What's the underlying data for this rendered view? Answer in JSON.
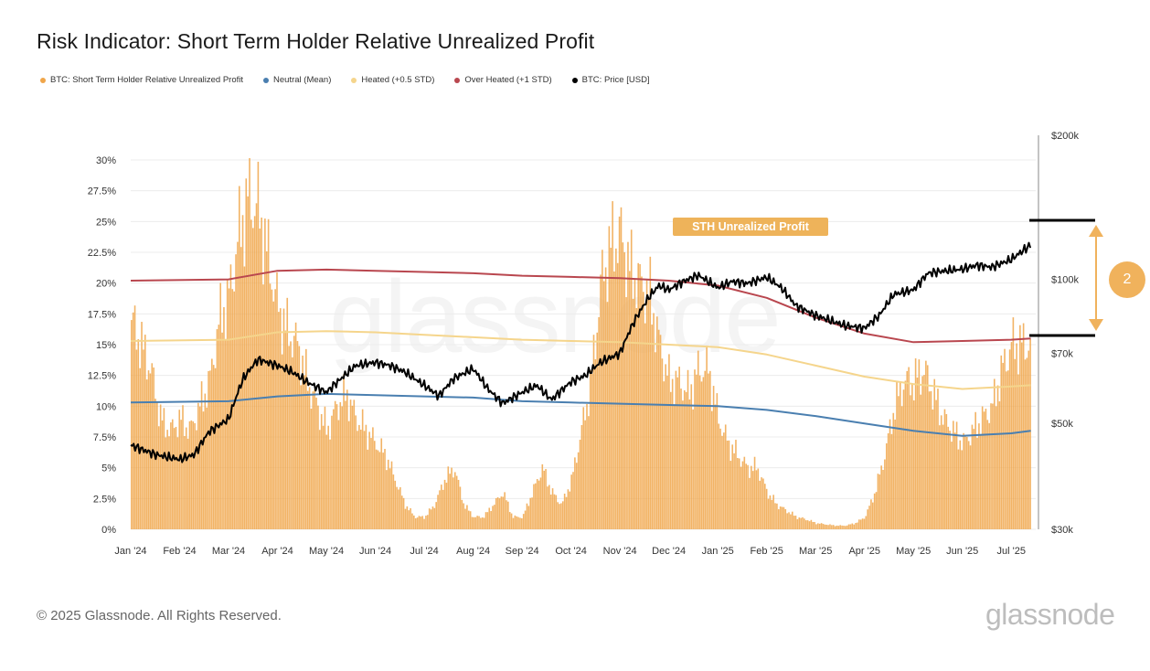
{
  "header": {
    "title": "Risk Indicator: Short Term Holder Relative Unrealized Profit"
  },
  "legend": [
    {
      "label": "BTC: Short Term Holder Relative Unrealized Profit",
      "color": "#f0a64a"
    },
    {
      "label": "Neutral (Mean)",
      "color": "#4a7fb0"
    },
    {
      "label": "Heated (+0.5 STD)",
      "color": "#f5d58c"
    },
    {
      "label": "Over Heated (+1 STD)",
      "color": "#b9474f"
    },
    {
      "label": "BTC: Price [USD]",
      "color": "#000000"
    }
  ],
  "annotation": {
    "label": "STH Unrealized Profit",
    "badge": "2"
  },
  "watermark": "glassnode",
  "footer": {
    "copyright": "© 2025 Glassnode. All Rights Reserved.",
    "brand": "glassnode"
  },
  "chart_data": {
    "type": "bar",
    "x_labels": [
      "Jan '24",
      "Feb '24",
      "Mar '24",
      "Apr '24",
      "May '24",
      "Jun '24",
      "Jul '24",
      "Aug '24",
      "Sep '24",
      "Oct '24",
      "Nov '24",
      "Dec '24",
      "Jan '25",
      "Feb '25",
      "Mar '25",
      "Apr '25",
      "May '25",
      "Jun '25",
      "Jul '25"
    ],
    "y_left": {
      "ticks": [
        "0%",
        "2.5%",
        "5%",
        "7.5%",
        "10%",
        "12.5%",
        "15%",
        "17.5%",
        "20%",
        "22.5%",
        "25%",
        "27.5%",
        "30%"
      ],
      "min": 0,
      "max": 30
    },
    "y_right": {
      "ticks": [
        "$30k",
        "$50k",
        "$70k",
        "$100k",
        "$200k"
      ],
      "values": [
        30000,
        50000,
        70000,
        100000,
        200000
      ],
      "scale": "log"
    },
    "grid": true,
    "legend_position": "top-left",
    "series": [
      {
        "name": "BTC: Short Term Holder Relative Unrealized Profit",
        "type": "bar",
        "color": "#f0a64a",
        "x": [
          0,
          0.2,
          0.4,
          0.6,
          0.8,
          1,
          1.2,
          1.4,
          1.6,
          1.8,
          2,
          2.2,
          2.4,
          2.6,
          2.8,
          3,
          3.2,
          3.4,
          3.6,
          3.8,
          4,
          4.2,
          4.4,
          4.6,
          4.8,
          5,
          5.2,
          5.4,
          5.6,
          5.8,
          6,
          6.2,
          6.4,
          6.6,
          6.8,
          7,
          7.2,
          7.4,
          7.6,
          7.8,
          8,
          8.2,
          8.4,
          8.6,
          8.8,
          9,
          9.2,
          9.4,
          9.6,
          9.8,
          10,
          10.2,
          10.4,
          10.6,
          10.8,
          11,
          11.2,
          11.4,
          11.6,
          11.8,
          12,
          12.2,
          12.4,
          12.6,
          12.8,
          13,
          13.2,
          13.4,
          13.6,
          13.8,
          14,
          14.2,
          14.4,
          14.6,
          14.8,
          15,
          15.2,
          15.4,
          15.6,
          15.8,
          16,
          16.2,
          16.4,
          16.6,
          16.8,
          17,
          17.2,
          17.4,
          17.6,
          17.8,
          18,
          18.2,
          18.4
        ],
        "values": [
          17,
          15,
          13,
          9,
          8,
          9,
          8,
          10,
          12,
          17,
          19,
          24,
          27,
          26,
          22,
          18,
          16,
          15,
          12,
          10,
          8,
          10,
          11,
          9,
          8,
          7,
          6,
          4,
          2,
          1,
          1,
          2,
          4,
          5,
          2,
          1,
          1,
          2,
          3,
          1,
          1,
          3,
          5,
          3,
          2,
          4,
          8,
          12,
          20,
          23,
          24,
          21,
          20,
          19,
          15,
          12,
          12,
          11,
          13,
          13,
          9,
          7,
          6,
          5,
          5,
          3,
          2,
          1.5,
          1,
          0.8,
          0.5,
          0.4,
          0.3,
          0.3,
          0.5,
          1,
          3,
          6,
          10,
          12,
          12,
          13,
          11,
          9,
          8,
          7,
          8,
          9,
          10,
          13,
          15,
          15,
          15
        ],
        "range": [
          0,
          31
        ]
      },
      {
        "name": "Neutral (Mean)",
        "type": "line",
        "color": "#4a7fb0",
        "x": [
          0,
          2,
          3,
          4,
          5,
          6,
          7,
          8,
          9,
          10,
          11,
          12,
          13,
          14,
          15,
          16,
          17,
          18,
          18.4
        ],
        "values": [
          10.3,
          10.4,
          10.8,
          11.0,
          10.9,
          10.8,
          10.7,
          10.4,
          10.3,
          10.2,
          10.1,
          10.0,
          9.7,
          9.2,
          8.6,
          8.0,
          7.6,
          7.8,
          8.0
        ]
      },
      {
        "name": "Heated (+0.5 STD)",
        "type": "line",
        "color": "#f5d58c",
        "x": [
          0,
          2,
          3,
          4,
          5,
          6,
          7,
          8,
          9,
          10,
          11,
          12,
          13,
          14,
          15,
          16,
          17,
          18,
          18.4
        ],
        "values": [
          15.3,
          15.4,
          16.0,
          16.1,
          16.0,
          15.8,
          15.6,
          15.4,
          15.3,
          15.2,
          15.0,
          14.8,
          14.2,
          13.3,
          12.4,
          11.8,
          11.4,
          11.6,
          11.7
        ]
      },
      {
        "name": "Over Heated (+1 STD)",
        "type": "line",
        "color": "#b9474f",
        "x": [
          0,
          2,
          3,
          4,
          5,
          6,
          7,
          8,
          9,
          10,
          11,
          12,
          13,
          14,
          15,
          16,
          17,
          18,
          18.4
        ],
        "values": [
          20.2,
          20.3,
          21.0,
          21.1,
          21.0,
          20.9,
          20.8,
          20.6,
          20.5,
          20.4,
          20.2,
          19.8,
          18.8,
          17.2,
          15.9,
          15.2,
          15.3,
          15.4,
          15.5
        ]
      },
      {
        "name": "BTC: Price [USD]",
        "type": "line",
        "color": "#000000",
        "axis": "right",
        "x": [
          0,
          0.5,
          1,
          1.3,
          1.6,
          2,
          2.3,
          2.6,
          3,
          3.3,
          3.6,
          4,
          4.3,
          4.6,
          5,
          5.3,
          5.6,
          6,
          6.3,
          6.6,
          7,
          7.3,
          7.6,
          8,
          8.3,
          8.6,
          9,
          9.3,
          9.6,
          10,
          10.3,
          10.6,
          10.8,
          11,
          11.3,
          11.6,
          12,
          12.3,
          12.6,
          13,
          13.3,
          13.6,
          14,
          14.3,
          14.6,
          15,
          15.3,
          15.6,
          16,
          16.3,
          16.6,
          17,
          17.3,
          17.6,
          18,
          18.2,
          18.4
        ],
        "values": [
          45000,
          43000,
          42000,
          43000,
          48000,
          51000,
          62000,
          68000,
          66000,
          64000,
          61000,
          58000,
          62000,
          66000,
          67000,
          66000,
          64000,
          60000,
          57000,
          62000,
          65000,
          59000,
          55000,
          58000,
          60000,
          56000,
          61000,
          63000,
          67000,
          70000,
          82000,
          92000,
          97000,
          95000,
          99000,
          102000,
          96000,
          99000,
          98000,
          101000,
          96000,
          88000,
          84000,
          82000,
          80000,
          79000,
          84000,
          93000,
          95000,
          103000,
          104000,
          105000,
          107000,
          106000,
          110000,
          114000,
          118000
        ]
      }
    ]
  }
}
